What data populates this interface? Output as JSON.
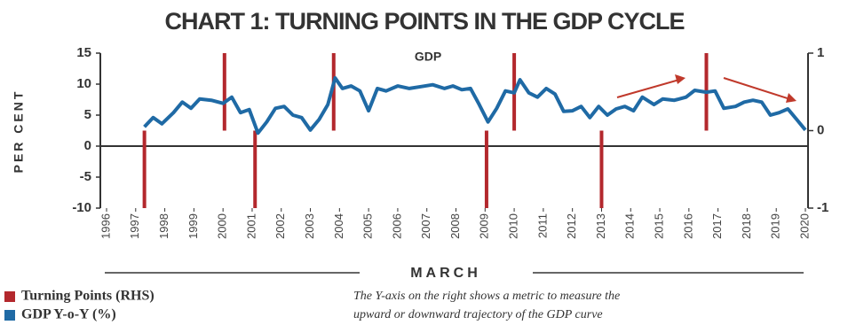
{
  "chart_data": {
    "type": "combo",
    "title": "CHART 1: TURNING POINTS IN THE GDP CYCLE",
    "y_label": "PER CENT",
    "x_label": "MARCH",
    "annotation": "GDP",
    "note": [
      "The Y-axis on the right shows a metric to measure the",
      "upward or downward trajectory of the GDP curve"
    ],
    "xlim": [
      1996,
      2020
    ],
    "xticks": [
      1996,
      1997,
      1998,
      1999,
      2000,
      2001,
      2002,
      2003,
      2004,
      2005,
      2006,
      2007,
      2008,
      2009,
      2010,
      2011,
      2012,
      2013,
      2014,
      2015,
      2016,
      2017,
      2018,
      2019,
      2020
    ],
    "ylim": [
      -10,
      15
    ],
    "yticks": [
      -10,
      -5,
      0,
      5,
      10,
      15
    ],
    "y2lim": [
      -1,
      1
    ],
    "y2ticks": [
      -1,
      0,
      1
    ],
    "series": [
      {
        "name": "Turning Points (RHS)",
        "color": "#b3282d",
        "type": "bar",
        "axis": "y2",
        "x": [
          1997.3,
          2000.05,
          2001.1,
          2003.8,
          2009.05,
          2010.0,
          2013.0,
          2016.6
        ],
        "values": [
          -1,
          1,
          -1,
          1,
          -1,
          1,
          -1,
          1
        ]
      },
      {
        "name": "GDP Y-o-Y (%)",
        "color": "#1f6aa5",
        "type": "line",
        "x": [
          1997.3,
          1997.6,
          1997.9,
          1998.3,
          1998.6,
          1998.9,
          1999.2,
          1999.6,
          2000.0,
          2000.3,
          2000.6,
          2000.9,
          2001.2,
          2001.5,
          2001.8,
          2002.1,
          2002.4,
          2002.7,
          2003.0,
          2003.3,
          2003.6,
          2003.85,
          2004.1,
          2004.4,
          2004.7,
          2005.0,
          2005.3,
          2005.6,
          2006.0,
          2006.4,
          2006.8,
          2007.2,
          2007.6,
          2007.9,
          2008.2,
          2008.5,
          2008.8,
          2009.1,
          2009.4,
          2009.7,
          2010.0,
          2010.2,
          2010.5,
          2010.8,
          2011.1,
          2011.4,
          2011.7,
          2012.0,
          2012.3,
          2012.6,
          2012.9,
          2013.2,
          2013.5,
          2013.8,
          2014.1,
          2014.4,
          2014.8,
          2015.1,
          2015.5,
          2015.9,
          2016.2,
          2016.6,
          2016.9,
          2017.2,
          2017.6,
          2017.9,
          2018.2,
          2018.5,
          2018.8,
          2019.1,
          2019.4,
          2019.7,
          2020.0
        ],
        "values": [
          3.1,
          4.6,
          3.6,
          5.4,
          7.1,
          6.1,
          7.6,
          7.4,
          6.9,
          7.9,
          5.4,
          5.9,
          2.1,
          3.9,
          6.1,
          6.4,
          5.0,
          4.6,
          2.6,
          4.3,
          6.7,
          11.0,
          9.3,
          9.7,
          8.9,
          5.7,
          9.3,
          8.9,
          9.7,
          9.3,
          9.6,
          9.9,
          9.3,
          9.7,
          9.1,
          9.3,
          6.7,
          3.9,
          6.1,
          8.9,
          8.6,
          10.7,
          8.6,
          7.9,
          9.3,
          8.4,
          5.6,
          5.7,
          6.4,
          4.6,
          6.4,
          5.0,
          6.0,
          6.4,
          5.7,
          7.9,
          6.7,
          7.6,
          7.4,
          7.9,
          9.0,
          8.7,
          8.9,
          6.1,
          6.4,
          7.1,
          7.4,
          7.1,
          5.0,
          5.4,
          6.0,
          4.3,
          2.6
        ]
      }
    ]
  }
}
